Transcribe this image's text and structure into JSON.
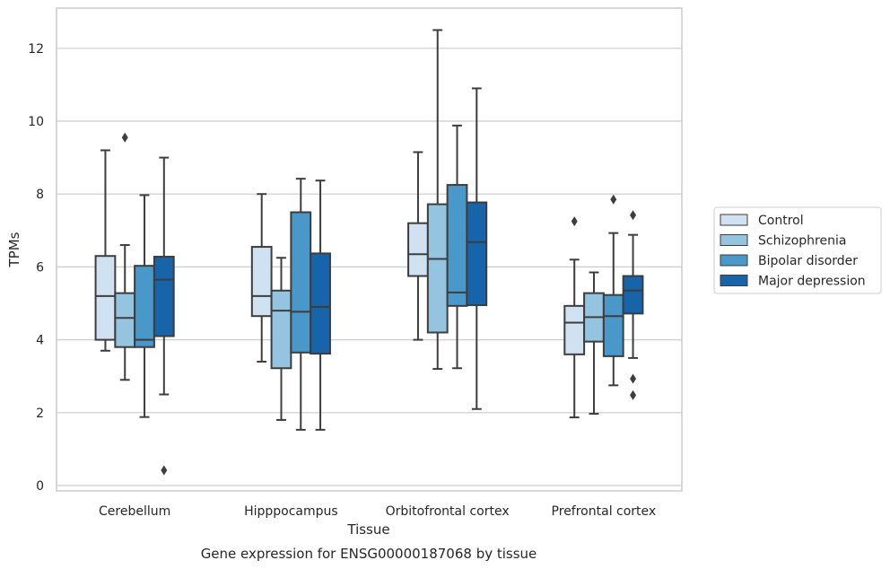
{
  "caption": "Gene expression for ENSG00000187068 by tissue",
  "chart_data": {
    "type": "box",
    "xlabel": "Tissue",
    "ylabel": "TPMs",
    "ylim": [
      -0.2,
      13.1
    ],
    "yticks": [
      0,
      2,
      4,
      6,
      8,
      10,
      12
    ],
    "grid": "horizontal",
    "legend_position": "right",
    "categories": [
      "Cerebellum",
      "Hipppocampus",
      "Orbitofrontal cortex",
      "Prefrontal cortex"
    ],
    "series": [
      {
        "name": "Control",
        "color": "#d0e1f2",
        "boxes": [
          {
            "whislo": 3.7,
            "q1": 4.0,
            "med": 5.2,
            "q3": 6.3,
            "whishi": 9.2,
            "fliers": []
          },
          {
            "whislo": 3.4,
            "q1": 4.65,
            "med": 5.2,
            "q3": 6.55,
            "whishi": 8.0,
            "fliers": []
          },
          {
            "whislo": 4.0,
            "q1": 5.75,
            "med": 6.35,
            "q3": 7.2,
            "whishi": 9.15,
            "fliers": []
          },
          {
            "whislo": 1.87,
            "q1": 3.6,
            "med": 4.47,
            "q3": 4.93,
            "whishi": 6.2,
            "fliers": [
              7.25
            ]
          }
        ]
      },
      {
        "name": "Schizophrenia",
        "color": "#94c4df",
        "boxes": [
          {
            "whislo": 2.9,
            "q1": 3.8,
            "med": 4.6,
            "q3": 5.28,
            "whishi": 6.6,
            "fliers": [
              9.55
            ]
          },
          {
            "whislo": 1.8,
            "q1": 3.22,
            "med": 4.8,
            "q3": 5.35,
            "whishi": 6.25,
            "fliers": []
          },
          {
            "whislo": 3.2,
            "q1": 4.2,
            "med": 6.22,
            "q3": 7.72,
            "whishi": 12.5,
            "fliers": []
          },
          {
            "whislo": 1.97,
            "q1": 3.95,
            "med": 4.62,
            "q3": 5.28,
            "whishi": 5.85,
            "fliers": []
          }
        ]
      },
      {
        "name": "Bipolar disorder",
        "color": "#4a98c9",
        "boxes": [
          {
            "whislo": 1.88,
            "q1": 3.8,
            "med": 4.0,
            "q3": 6.03,
            "whishi": 7.97,
            "fliers": []
          },
          {
            "whislo": 1.53,
            "q1": 3.65,
            "med": 4.77,
            "q3": 7.5,
            "whishi": 8.42,
            "fliers": []
          },
          {
            "whislo": 3.22,
            "q1": 4.93,
            "med": 5.3,
            "q3": 8.25,
            "whishi": 9.88,
            "fliers": []
          },
          {
            "whislo": 2.75,
            "q1": 3.55,
            "med": 4.65,
            "q3": 5.23,
            "whishi": 6.93,
            "fliers": [
              7.85
            ]
          }
        ]
      },
      {
        "name": "Major depression",
        "color": "#1764ab",
        "boxes": [
          {
            "whislo": 2.5,
            "q1": 4.1,
            "med": 5.65,
            "q3": 6.28,
            "whishi": 9.0,
            "fliers": [
              0.42
            ]
          },
          {
            "whislo": 1.53,
            "q1": 3.62,
            "med": 4.9,
            "q3": 6.37,
            "whishi": 8.37,
            "fliers": []
          },
          {
            "whislo": 2.1,
            "q1": 4.95,
            "med": 6.68,
            "q3": 7.77,
            "whishi": 10.9,
            "fliers": []
          },
          {
            "whislo": 3.5,
            "q1": 4.72,
            "med": 5.35,
            "q3": 5.75,
            "whishi": 6.88,
            "fliers": [
              7.42,
              2.93,
              2.48
            ]
          }
        ]
      }
    ]
  }
}
